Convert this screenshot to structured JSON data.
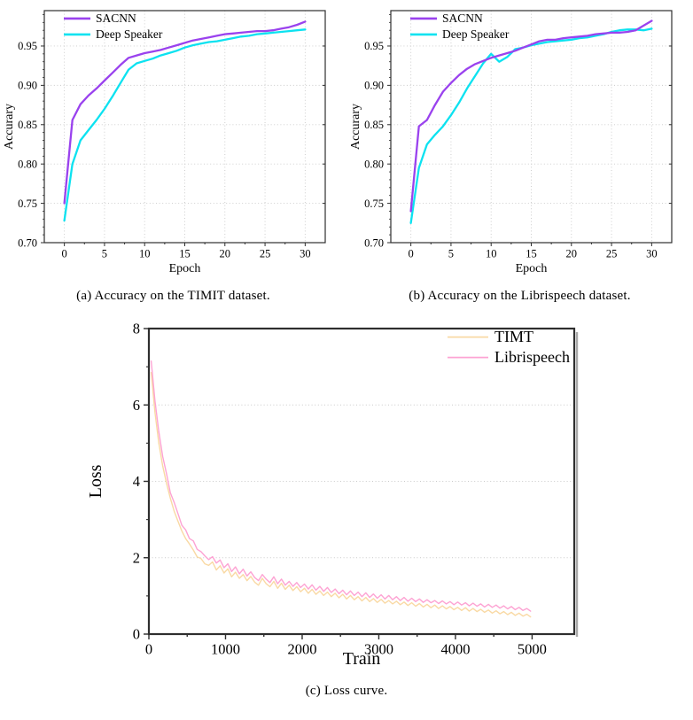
{
  "page": {
    "background": "#ffffff"
  },
  "figure": {
    "captions": {
      "a": "(a)  Accuracy on the TIMIT dataset.",
      "b": "(b)  Accuracy on the Librispeech dataset.",
      "c": "(c)  Loss curve."
    }
  },
  "colors": {
    "sacnn_purple": "#9a42ee",
    "deep_speaker_cyan": "#0ce2f0",
    "timt_orange": "#f9d9a4",
    "librispeech_pink": "#fda3d3",
    "grid_gray": "#c9c9c9",
    "frame_dark": "#2e2e2e"
  },
  "chart_data": [
    {
      "id": "a",
      "type": "line",
      "title": "",
      "xlabel": "Epoch",
      "ylabel": "Accurary",
      "xlim": [
        -2.5,
        32.5
      ],
      "ylim": [
        0.7,
        0.995
      ],
      "xticks": [
        {
          "v": 0,
          "label": "0"
        },
        {
          "v": 5,
          "label": "5"
        },
        {
          "v": 10,
          "label": "10"
        },
        {
          "v": 15,
          "label": "15"
        },
        {
          "v": 20,
          "label": "20"
        },
        {
          "v": 25,
          "label": "25"
        },
        {
          "v": 30,
          "label": "30"
        }
      ],
      "yticks": [
        {
          "v": 0.7,
          "label": "0.70"
        },
        {
          "v": 0.75,
          "label": "0.75"
        },
        {
          "v": 0.8,
          "label": "0.80"
        },
        {
          "v": 0.85,
          "label": "0.85"
        },
        {
          "v": 0.9,
          "label": "0.90"
        },
        {
          "v": 0.95,
          "label": "0.95"
        }
      ],
      "xminor": [
        2.5,
        7.5,
        12.5,
        17.5,
        22.5,
        27.5
      ],
      "yminor_step": 0.01,
      "grid": {
        "vertical": true,
        "horizontal": true
      },
      "legend": {
        "position": "top-left",
        "entries": [
          "SACNN",
          "Deep Speaker"
        ]
      },
      "series": [
        {
          "name": "SACNN",
          "color": "#9a42ee",
          "x_start": 0,
          "x_step": 1,
          "values": [
            0.75,
            0.856,
            0.876,
            0.887,
            0.896,
            0.906,
            0.916,
            0.926,
            0.935,
            0.938,
            0.941,
            0.943,
            0.945,
            0.948,
            0.951,
            0.954,
            0.957,
            0.959,
            0.961,
            0.963,
            0.965,
            0.966,
            0.967,
            0.968,
            0.969,
            0.969,
            0.97,
            0.972,
            0.974,
            0.977,
            0.981
          ]
        },
        {
          "name": "Deep Speaker",
          "color": "#0ce2f0",
          "x_start": 0,
          "x_step": 1,
          "values": [
            0.728,
            0.8,
            0.83,
            0.843,
            0.856,
            0.87,
            0.886,
            0.903,
            0.92,
            0.928,
            0.931,
            0.934,
            0.938,
            0.941,
            0.944,
            0.948,
            0.951,
            0.953,
            0.955,
            0.956,
            0.958,
            0.96,
            0.962,
            0.963,
            0.965,
            0.966,
            0.967,
            0.968,
            0.969,
            0.97,
            0.971
          ]
        }
      ]
    },
    {
      "id": "b",
      "type": "line",
      "title": "",
      "xlabel": "Epoch",
      "ylabel": "Accurary",
      "xlim": [
        -2.5,
        32.5
      ],
      "ylim": [
        0.7,
        0.995
      ],
      "xticks": [
        {
          "v": 0,
          "label": "0"
        },
        {
          "v": 5,
          "label": "5"
        },
        {
          "v": 10,
          "label": "10"
        },
        {
          "v": 15,
          "label": "15"
        },
        {
          "v": 20,
          "label": "20"
        },
        {
          "v": 25,
          "label": "25"
        },
        {
          "v": 30,
          "label": "30"
        }
      ],
      "yticks": [
        {
          "v": 0.7,
          "label": "0.70"
        },
        {
          "v": 0.75,
          "label": "0.75"
        },
        {
          "v": 0.8,
          "label": "0.80"
        },
        {
          "v": 0.85,
          "label": "0.85"
        },
        {
          "v": 0.9,
          "label": "0.90"
        },
        {
          "v": 0.95,
          "label": "0.95"
        }
      ],
      "xminor": [
        2.5,
        7.5,
        12.5,
        17.5,
        22.5,
        27.5
      ],
      "yminor_step": 0.01,
      "grid": {
        "vertical": true,
        "horizontal": true
      },
      "legend": {
        "position": "top-left",
        "entries": [
          "SACNN",
          "Deep Speaker"
        ]
      },
      "series": [
        {
          "name": "SACNN",
          "color": "#9a42ee",
          "x_start": 0,
          "x_step": 1,
          "values": [
            0.74,
            0.848,
            0.856,
            0.875,
            0.892,
            0.903,
            0.913,
            0.921,
            0.927,
            0.931,
            0.935,
            0.938,
            0.941,
            0.944,
            0.948,
            0.952,
            0.956,
            0.958,
            0.958,
            0.96,
            0.961,
            0.962,
            0.963,
            0.965,
            0.966,
            0.967,
            0.967,
            0.968,
            0.97,
            0.976,
            0.982
          ]
        },
        {
          "name": "Deep Speaker",
          "color": "#0ce2f0",
          "x_start": 0,
          "x_step": 1,
          "values": [
            0.725,
            0.795,
            0.825,
            0.837,
            0.848,
            0.862,
            0.878,
            0.896,
            0.912,
            0.928,
            0.94,
            0.93,
            0.936,
            0.946,
            0.948,
            0.951,
            0.953,
            0.955,
            0.956,
            0.957,
            0.958,
            0.96,
            0.961,
            0.963,
            0.965,
            0.968,
            0.97,
            0.971,
            0.971,
            0.97,
            0.972
          ]
        }
      ]
    },
    {
      "id": "c",
      "type": "line",
      "title": "",
      "xlabel": "Train",
      "ylabel": "Loss",
      "xlim": [
        0,
        5550
      ],
      "ylim": [
        0,
        8
      ],
      "xticks": [
        {
          "v": 0,
          "label": "0"
        },
        {
          "v": 1000,
          "label": "1000"
        },
        {
          "v": 2000,
          "label": "2000"
        },
        {
          "v": 3000,
          "label": "3000"
        },
        {
          "v": 4000,
          "label": "4000"
        },
        {
          "v": 5000,
          "label": "5000"
        }
      ],
      "yticks": [
        {
          "v": 0,
          "label": "0"
        },
        {
          "v": 2,
          "label": "2"
        },
        {
          "v": 4,
          "label": "4"
        },
        {
          "v": 6,
          "label": "6"
        },
        {
          "v": 8,
          "label": "8"
        }
      ],
      "xminor": [
        500,
        1500,
        2500,
        3500,
        4500
      ],
      "yminor_step": 1,
      "grid": {
        "vertical": false,
        "horizontal": true
      },
      "legend": {
        "position": "top-right",
        "entries": [
          "TIMT",
          "Librispeech"
        ]
      },
      "series": [
        {
          "name": "TIMT",
          "color": "#f9d9a4",
          "x_start": 30,
          "x_step": 50,
          "values": [
            6.85,
            5.8,
            5.0,
            4.4,
            3.95,
            3.56,
            3.22,
            2.95,
            2.7,
            2.5,
            2.36,
            2.2,
            2.02,
            1.98,
            1.84,
            1.8,
            1.89,
            1.68,
            1.79,
            1.6,
            1.71,
            1.5,
            1.62,
            1.46,
            1.56,
            1.4,
            1.51,
            1.36,
            1.28,
            1.46,
            1.32,
            1.24,
            1.38,
            1.2,
            1.33,
            1.17,
            1.28,
            1.14,
            1.24,
            1.11,
            1.2,
            1.07,
            1.17,
            1.04,
            1.13,
            1.01,
            1.1,
            0.98,
            1.07,
            0.95,
            1.04,
            0.92,
            1.01,
            0.9,
            0.98,
            0.87,
            0.96,
            0.85,
            0.93,
            0.83,
            0.91,
            0.81,
            0.88,
            0.79,
            0.86,
            0.77,
            0.84,
            0.75,
            0.82,
            0.73,
            0.8,
            0.71,
            0.78,
            0.69,
            0.76,
            0.67,
            0.74,
            0.66,
            0.72,
            0.64,
            0.7,
            0.62,
            0.69,
            0.6,
            0.67,
            0.59,
            0.65,
            0.57,
            0.63,
            0.55,
            0.61,
            0.53,
            0.59,
            0.51,
            0.57,
            0.49,
            0.55,
            0.47,
            0.52,
            0.45
          ]
        },
        {
          "name": "Librispeech",
          "color": "#fda3d3",
          "x_start": 30,
          "x_step": 50,
          "values": [
            7.15,
            6.1,
            5.3,
            4.65,
            4.2,
            3.7,
            3.45,
            3.15,
            2.85,
            2.73,
            2.5,
            2.44,
            2.22,
            2.16,
            2.05,
            1.95,
            2.03,
            1.86,
            1.94,
            1.74,
            1.84,
            1.64,
            1.76,
            1.58,
            1.7,
            1.52,
            1.63,
            1.48,
            1.4,
            1.56,
            1.44,
            1.35,
            1.5,
            1.32,
            1.44,
            1.28,
            1.38,
            1.25,
            1.35,
            1.22,
            1.31,
            1.18,
            1.29,
            1.15,
            1.25,
            1.12,
            1.22,
            1.09,
            1.18,
            1.06,
            1.15,
            1.03,
            1.13,
            1.01,
            1.1,
            0.98,
            1.08,
            0.96,
            1.05,
            0.94,
            1.03,
            0.92,
            1.01,
            0.9,
            0.98,
            0.88,
            0.96,
            0.86,
            0.94,
            0.85,
            0.92,
            0.83,
            0.9,
            0.82,
            0.88,
            0.8,
            0.87,
            0.79,
            0.85,
            0.77,
            0.84,
            0.76,
            0.82,
            0.74,
            0.81,
            0.73,
            0.79,
            0.71,
            0.78,
            0.7,
            0.76,
            0.68,
            0.74,
            0.66,
            0.72,
            0.64,
            0.7,
            0.62,
            0.67,
            0.6
          ]
        }
      ]
    }
  ]
}
